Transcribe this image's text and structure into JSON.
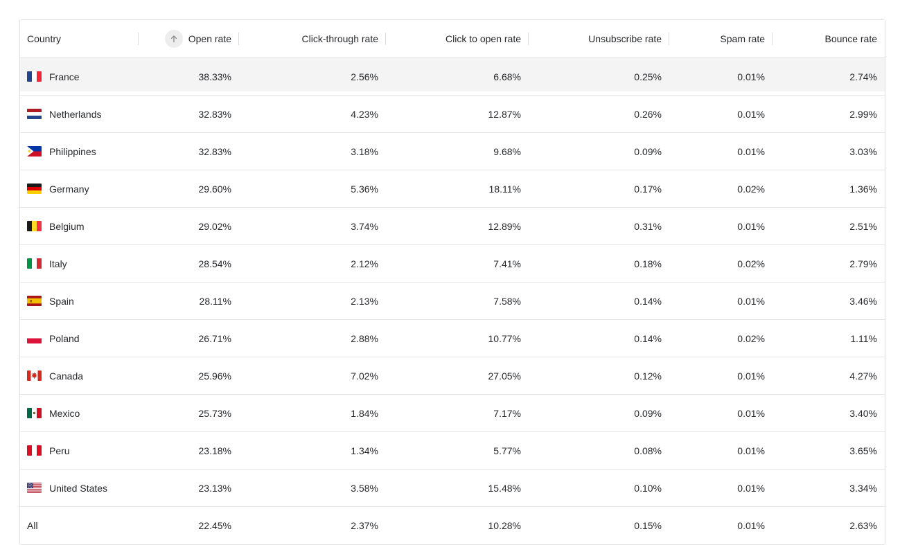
{
  "table": {
    "columns": [
      {
        "id": "country",
        "label": "Country"
      },
      {
        "id": "open_rate",
        "label": "Open rate"
      },
      {
        "id": "click_through_rate",
        "label": "Click-through rate"
      },
      {
        "id": "click_to_open_rate",
        "label": "Click to open rate"
      },
      {
        "id": "unsubscribe_rate",
        "label": "Unsubscribe rate"
      },
      {
        "id": "spam_rate",
        "label": "Spam rate"
      },
      {
        "id": "bounce_rate",
        "label": "Bounce rate"
      }
    ],
    "sort": {
      "column": "Open rate",
      "direction": "ascending",
      "icon": "arrow-up-icon"
    },
    "rows": [
      {
        "country": "France",
        "flag": "france-flag",
        "highlighted": true,
        "values": [
          "38.33%",
          "2.56%",
          "6.68%",
          "0.25%",
          "0.01%",
          "2.74%"
        ]
      },
      {
        "country": "Netherlands",
        "flag": "netherlands-flag",
        "highlighted": false,
        "values": [
          "32.83%",
          "4.23%",
          "12.87%",
          "0.26%",
          "0.01%",
          "2.99%"
        ]
      },
      {
        "country": "Philippines",
        "flag": "philippines-flag",
        "highlighted": false,
        "values": [
          "32.83%",
          "3.18%",
          "9.68%",
          "0.09%",
          "0.01%",
          "3.03%"
        ]
      },
      {
        "country": "Germany",
        "flag": "germany-flag",
        "highlighted": false,
        "values": [
          "29.60%",
          "5.36%",
          "18.11%",
          "0.17%",
          "0.02%",
          "1.36%"
        ]
      },
      {
        "country": "Belgium",
        "flag": "belgium-flag",
        "highlighted": false,
        "values": [
          "29.02%",
          "3.74%",
          "12.89%",
          "0.31%",
          "0.01%",
          "2.51%"
        ]
      },
      {
        "country": "Italy",
        "flag": "italy-flag",
        "highlighted": false,
        "values": [
          "28.54%",
          "2.12%",
          "7.41%",
          "0.18%",
          "0.02%",
          "2.79%"
        ]
      },
      {
        "country": "Spain",
        "flag": "spain-flag",
        "highlighted": false,
        "values": [
          "28.11%",
          "2.13%",
          "7.58%",
          "0.14%",
          "0.01%",
          "3.46%"
        ]
      },
      {
        "country": "Poland",
        "flag": "poland-flag",
        "highlighted": false,
        "values": [
          "26.71%",
          "2.88%",
          "10.77%",
          "0.14%",
          "0.02%",
          "1.11%"
        ]
      },
      {
        "country": "Canada",
        "flag": "canada-flag",
        "highlighted": false,
        "values": [
          "25.96%",
          "7.02%",
          "27.05%",
          "0.12%",
          "0.01%",
          "4.27%"
        ]
      },
      {
        "country": "Mexico",
        "flag": "mexico-flag",
        "highlighted": false,
        "values": [
          "25.73%",
          "1.84%",
          "7.17%",
          "0.09%",
          "0.01%",
          "3.40%"
        ]
      },
      {
        "country": "Peru",
        "flag": "peru-flag",
        "highlighted": false,
        "values": [
          "23.18%",
          "1.34%",
          "5.77%",
          "0.08%",
          "0.01%",
          "3.65%"
        ]
      },
      {
        "country": "United States",
        "flag": "united-states-flag",
        "highlighted": false,
        "values": [
          "23.13%",
          "3.58%",
          "15.48%",
          "0.10%",
          "0.01%",
          "3.34%"
        ]
      },
      {
        "country": "All",
        "flag": null,
        "highlighted": false,
        "values": [
          "22.45%",
          "2.37%",
          "10.28%",
          "0.15%",
          "0.01%",
          "2.63%"
        ]
      }
    ]
  },
  "colors": {
    "row_highlight": "#f4f4f5",
    "table_border": "#e0e0e0",
    "row_border": "#e4e4e6",
    "header_divider": "#dcdcdc",
    "text": "#26282b",
    "sort_icon_bg": "#ededed",
    "sort_icon_arrow": "#8f8f8f"
  }
}
